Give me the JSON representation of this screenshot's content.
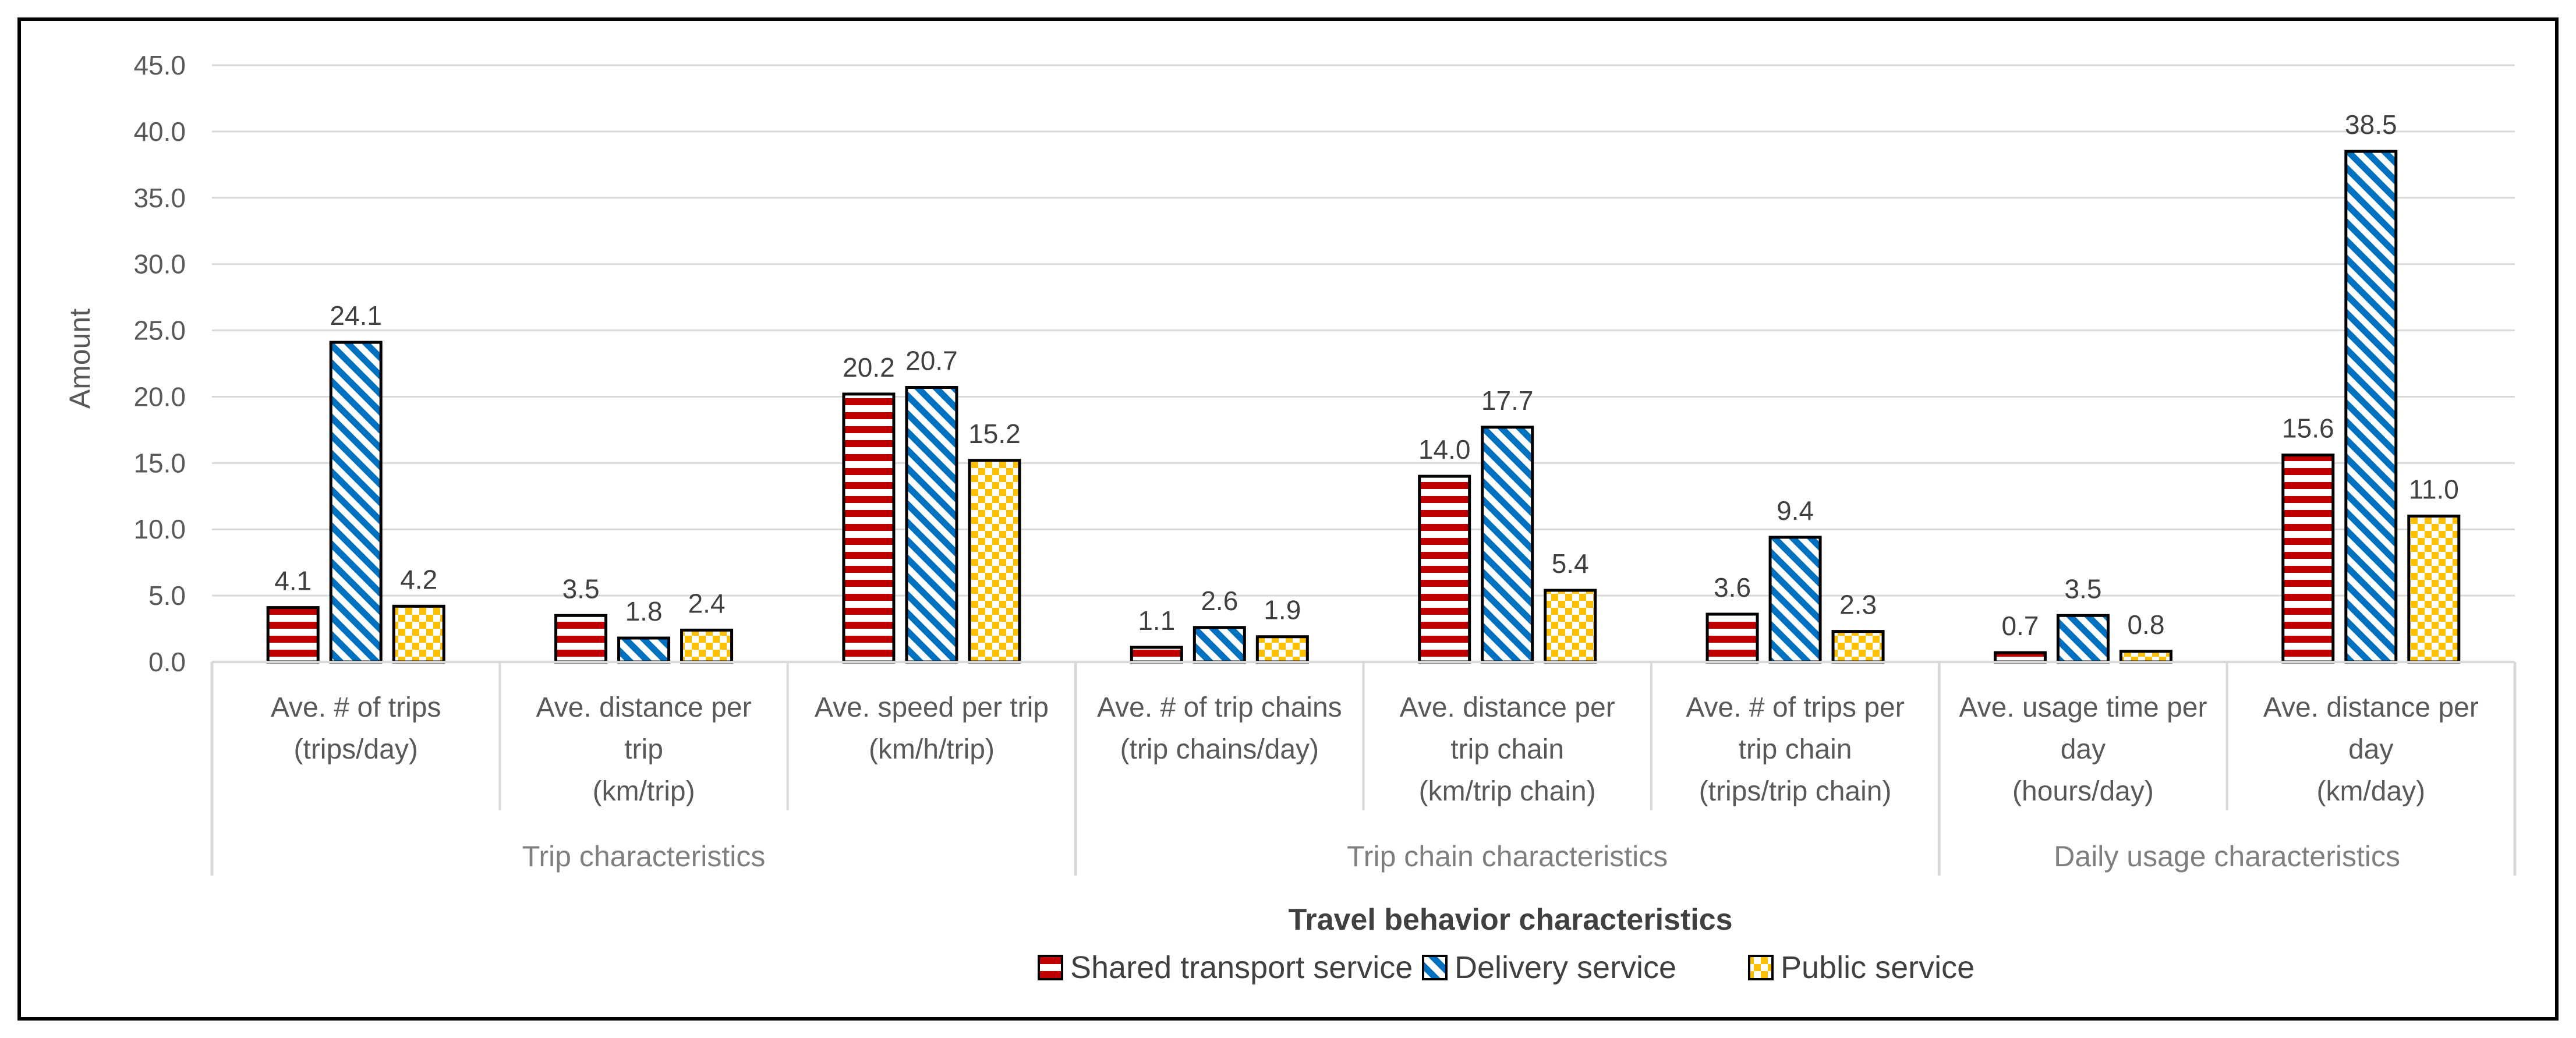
{
  "chart_data": {
    "type": "bar",
    "title": "",
    "ylabel": "Amount",
    "xlabel": "Travel behavior characteristics",
    "ylim": [
      0,
      45
    ],
    "ytick_step": 5,
    "ytick_labels": [
      "0.0",
      "5.0",
      "10.0",
      "15.0",
      "20.0",
      "25.0",
      "30.0",
      "35.0",
      "40.0",
      "45.0"
    ],
    "grid": true,
    "legend_position": "bottom",
    "groups": [
      {
        "label": "Trip characteristics",
        "count": 3
      },
      {
        "label": "Trip chain characteristics",
        "count": 3
      },
      {
        "label": "Daily usage characteristics",
        "count": 2
      }
    ],
    "categories": [
      [
        "Ave. # of trips",
        "(trips/day)"
      ],
      [
        "Ave. distance per",
        "trip",
        "(km/trip)"
      ],
      [
        "Ave. speed per trip",
        "(km/h/trip)"
      ],
      [
        "Ave. # of trip chains",
        "(trip chains/day)"
      ],
      [
        "Ave. distance per",
        "trip chain",
        "(km/trip chain)"
      ],
      [
        "Ave. # of trips per",
        "trip chain",
        "(trips/trip chain)"
      ],
      [
        "Ave. usage time per",
        "day",
        "(hours/day)"
      ],
      [
        "Ave. distance per",
        "day",
        "(km/day)"
      ]
    ],
    "series": [
      {
        "name": "Shared transport service",
        "pattern": "horizontal-stripes",
        "color": "#c00000",
        "values": [
          4.1,
          3.5,
          20.2,
          1.1,
          14.0,
          3.6,
          0.7,
          15.6
        ],
        "labels": [
          "4.1",
          "3.5",
          "20.2",
          "1.1",
          "14.0",
          "3.6",
          "0.7",
          "15.6"
        ]
      },
      {
        "name": "Delivery service",
        "pattern": "diagonal-stripes",
        "color": "#0070c0",
        "values": [
          24.1,
          1.8,
          20.7,
          2.6,
          17.7,
          9.4,
          3.5,
          38.5
        ],
        "labels": [
          "24.1",
          "1.8",
          "20.7",
          "2.6",
          "17.7",
          "9.4",
          "3.5",
          "38.5"
        ]
      },
      {
        "name": "Public service",
        "pattern": "checkerboard",
        "color": "#ffc000",
        "values": [
          4.2,
          2.4,
          15.2,
          1.9,
          5.4,
          2.3,
          0.8,
          11.0
        ],
        "labels": [
          "4.2",
          "2.4",
          "15.2",
          "1.9",
          "5.4",
          "2.3",
          "0.8",
          "11.0"
        ]
      }
    ]
  }
}
